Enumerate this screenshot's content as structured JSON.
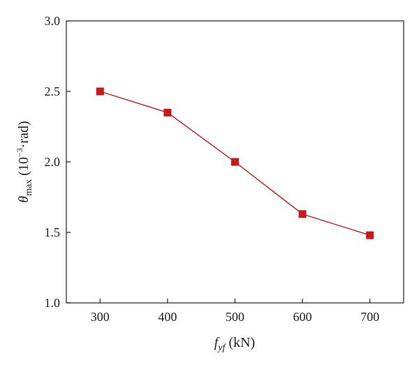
{
  "chart_data": {
    "type": "line",
    "x": [
      300,
      400,
      500,
      600,
      700
    ],
    "series": [
      {
        "values": [
          2.5,
          2.35,
          2.0,
          1.63,
          1.48
        ],
        "color": "#c8191b",
        "marker": "square"
      }
    ],
    "xlim": [
      250,
      750
    ],
    "ylim": [
      1.0,
      3.0
    ],
    "xticks": [
      "300",
      "400",
      "500",
      "600",
      "700"
    ],
    "yticks": [
      "1.0",
      "1.5",
      "2.0",
      "2.5",
      "3.0"
    ],
    "xlabel": {
      "base": "f",
      "sub": "yf",
      "unit": " (kN)"
    },
    "ylabel": {
      "base": "θ",
      "sub": "max",
      "unit_pre": " (10",
      "unit_sup": "−3",
      "unit_post": "·rad)"
    },
    "grid": false,
    "legend": "none"
  }
}
